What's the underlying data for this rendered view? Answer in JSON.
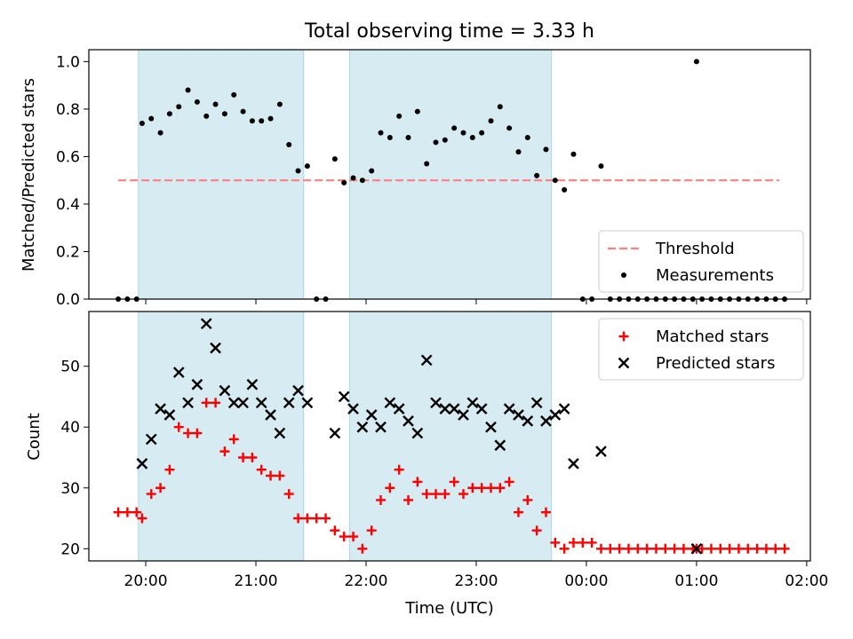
{
  "figure": {
    "title": "Total observing time = 3.33 h"
  },
  "chart_data": [
    {
      "type": "scatter",
      "panel": "top",
      "ylabel": "Matched/Predicted stars",
      "ylim": [
        0,
        1.05
      ],
      "yticks": [
        "0.0",
        "0.2",
        "0.4",
        "0.6",
        "0.8",
        "1.0"
      ],
      "xlim": [
        "19:29",
        "02:02"
      ],
      "x_is_time_of_day_utc": true,
      "observing_windows": [
        [
          "19:56",
          "21:26"
        ],
        [
          "21:51",
          "23:41"
        ]
      ],
      "window_color": "#add8e6",
      "threshold": {
        "name": "Threshold",
        "y": 0.5,
        "x_range": [
          "19:45",
          "01:45"
        ],
        "color": "#ff7f7f",
        "style": "dashed"
      },
      "series": [
        {
          "name": "Measurements",
          "marker": "dot",
          "color": "#000000",
          "points": [
            [
              "19:45",
              0.0
            ],
            [
              "19:50",
              0.0
            ],
            [
              "19:55",
              0.0
            ],
            [
              "19:58",
              0.74
            ],
            [
              "20:03",
              0.76
            ],
            [
              "20:08",
              0.7
            ],
            [
              "20:13",
              0.78
            ],
            [
              "20:18",
              0.81
            ],
            [
              "20:23",
              0.88
            ],
            [
              "20:28",
              0.83
            ],
            [
              "20:33",
              0.77
            ],
            [
              "20:38",
              0.82
            ],
            [
              "20:43",
              0.78
            ],
            [
              "20:48",
              0.86
            ],
            [
              "20:53",
              0.79
            ],
            [
              "20:58",
              0.75
            ],
            [
              "21:03",
              0.75
            ],
            [
              "21:08",
              0.76
            ],
            [
              "21:13",
              0.82
            ],
            [
              "21:18",
              0.65
            ],
            [
              "21:23",
              0.54
            ],
            [
              "21:28",
              0.56
            ],
            [
              "21:33",
              0.0
            ],
            [
              "21:38",
              0.0
            ],
            [
              "21:43",
              0.59
            ],
            [
              "21:48",
              0.49
            ],
            [
              "21:53",
              0.51
            ],
            [
              "21:58",
              0.5
            ],
            [
              "22:03",
              0.54
            ],
            [
              "22:08",
              0.7
            ],
            [
              "22:13",
              0.68
            ],
            [
              "22:18",
              0.77
            ],
            [
              "22:23",
              0.68
            ],
            [
              "22:28",
              0.79
            ],
            [
              "22:33",
              0.57
            ],
            [
              "22:38",
              0.66
            ],
            [
              "22:43",
              0.67
            ],
            [
              "22:48",
              0.72
            ],
            [
              "22:53",
              0.7
            ],
            [
              "22:58",
              0.68
            ],
            [
              "23:03",
              0.7
            ],
            [
              "23:08",
              0.75
            ],
            [
              "23:13",
              0.81
            ],
            [
              "23:18",
              0.72
            ],
            [
              "23:23",
              0.62
            ],
            [
              "23:28",
              0.68
            ],
            [
              "23:33",
              0.52
            ],
            [
              "23:38",
              0.63
            ],
            [
              "23:43",
              0.5
            ],
            [
              "23:48",
              0.46
            ],
            [
              "23:53",
              0.61
            ],
            [
              "23:58",
              0.0
            ],
            [
              "00:03",
              0.0
            ],
            [
              "00:08",
              0.56
            ],
            [
              "00:13",
              0.0
            ],
            [
              "00:18",
              0.0
            ],
            [
              "00:23",
              0.0
            ],
            [
              "00:28",
              0.0
            ],
            [
              "00:33",
              0.0
            ],
            [
              "00:38",
              0.0
            ],
            [
              "00:43",
              0.0
            ],
            [
              "00:48",
              0.0
            ],
            [
              "00:53",
              0.0
            ],
            [
              "00:58",
              0.0
            ],
            [
              "01:00",
              1.0
            ],
            [
              "01:03",
              0.0
            ],
            [
              "01:08",
              0.0
            ],
            [
              "01:13",
              0.0
            ],
            [
              "01:18",
              0.0
            ],
            [
              "01:23",
              0.0
            ],
            [
              "01:28",
              0.0
            ],
            [
              "01:33",
              0.0
            ],
            [
              "01:38",
              0.0
            ],
            [
              "01:43",
              0.0
            ],
            [
              "01:48",
              0.0
            ]
          ]
        }
      ],
      "legend": {
        "position": "lower right",
        "entries": [
          "Threshold",
          "Measurements"
        ]
      }
    },
    {
      "type": "scatter",
      "panel": "bottom",
      "xlabel": "Time (UTC)",
      "ylabel": "Count",
      "ylim": [
        18,
        59
      ],
      "yticks": [
        "20",
        "30",
        "40",
        "50"
      ],
      "xlim": [
        "19:29",
        "02:02"
      ],
      "xticks": [
        "20:00",
        "21:00",
        "22:00",
        "23:00",
        "00:00",
        "01:00",
        "02:00"
      ],
      "observing_windows": [
        [
          "19:56",
          "21:26"
        ],
        [
          "21:51",
          "23:41"
        ]
      ],
      "window_color": "#add8e6",
      "series": [
        {
          "name": "Matched stars",
          "marker": "plus",
          "color": "#ff0000",
          "points": [
            [
              "19:45",
              26
            ],
            [
              "19:50",
              26
            ],
            [
              "19:55",
              26
            ],
            [
              "19:58",
              25
            ],
            [
              "20:03",
              29
            ],
            [
              "20:08",
              30
            ],
            [
              "20:13",
              33
            ],
            [
              "20:18",
              40
            ],
            [
              "20:23",
              39
            ],
            [
              "20:28",
              39
            ],
            [
              "20:33",
              44
            ],
            [
              "20:38",
              44
            ],
            [
              "20:43",
              36
            ],
            [
              "20:48",
              38
            ],
            [
              "20:53",
              35
            ],
            [
              "20:58",
              35
            ],
            [
              "21:03",
              33
            ],
            [
              "21:08",
              32
            ],
            [
              "21:13",
              32
            ],
            [
              "21:18",
              29
            ],
            [
              "21:23",
              25
            ],
            [
              "21:28",
              25
            ],
            [
              "21:33",
              25
            ],
            [
              "21:38",
              25
            ],
            [
              "21:43",
              23
            ],
            [
              "21:48",
              22
            ],
            [
              "21:53",
              22
            ],
            [
              "21:58",
              20
            ],
            [
              "22:03",
              23
            ],
            [
              "22:08",
              28
            ],
            [
              "22:13",
              30
            ],
            [
              "22:18",
              33
            ],
            [
              "22:23",
              28
            ],
            [
              "22:28",
              31
            ],
            [
              "22:33",
              29
            ],
            [
              "22:38",
              29
            ],
            [
              "22:43",
              29
            ],
            [
              "22:48",
              31
            ],
            [
              "22:53",
              29
            ],
            [
              "22:58",
              30
            ],
            [
              "23:03",
              30
            ],
            [
              "23:08",
              30
            ],
            [
              "23:13",
              30
            ],
            [
              "23:18",
              31
            ],
            [
              "23:23",
              26
            ],
            [
              "23:28",
              28
            ],
            [
              "23:33",
              23
            ],
            [
              "23:38",
              26
            ],
            [
              "23:43",
              21
            ],
            [
              "23:48",
              20
            ],
            [
              "23:53",
              21
            ],
            [
              "23:58",
              21
            ],
            [
              "00:03",
              21
            ],
            [
              "00:08",
              20
            ],
            [
              "00:13",
              20
            ],
            [
              "00:18",
              20
            ],
            [
              "00:23",
              20
            ],
            [
              "00:28",
              20
            ],
            [
              "00:33",
              20
            ],
            [
              "00:38",
              20
            ],
            [
              "00:43",
              20
            ],
            [
              "00:48",
              20
            ],
            [
              "00:53",
              20
            ],
            [
              "00:58",
              20
            ],
            [
              "01:00",
              20
            ],
            [
              "01:03",
              20
            ],
            [
              "01:08",
              20
            ],
            [
              "01:13",
              20
            ],
            [
              "01:18",
              20
            ],
            [
              "01:23",
              20
            ],
            [
              "01:28",
              20
            ],
            [
              "01:33",
              20
            ],
            [
              "01:38",
              20
            ],
            [
              "01:43",
              20
            ],
            [
              "01:48",
              20
            ]
          ]
        },
        {
          "name": "Predicted stars",
          "marker": "x",
          "color": "#000000",
          "points": [
            [
              "19:58",
              34
            ],
            [
              "20:03",
              38
            ],
            [
              "20:08",
              43
            ],
            [
              "20:13",
              42
            ],
            [
              "20:18",
              49
            ],
            [
              "20:23",
              44
            ],
            [
              "20:28",
              47
            ],
            [
              "20:33",
              57
            ],
            [
              "20:38",
              53
            ],
            [
              "20:43",
              46
            ],
            [
              "20:48",
              44
            ],
            [
              "20:53",
              44
            ],
            [
              "20:58",
              47
            ],
            [
              "21:03",
              44
            ],
            [
              "21:08",
              42
            ],
            [
              "21:13",
              39
            ],
            [
              "21:18",
              44
            ],
            [
              "21:23",
              46
            ],
            [
              "21:28",
              44
            ],
            [
              "21:43",
              39
            ],
            [
              "21:48",
              45
            ],
            [
              "21:53",
              43
            ],
            [
              "21:58",
              40
            ],
            [
              "22:03",
              42
            ],
            [
              "22:08",
              40
            ],
            [
              "22:13",
              44
            ],
            [
              "22:18",
              43
            ],
            [
              "22:23",
              41
            ],
            [
              "22:28",
              39
            ],
            [
              "22:33",
              51
            ],
            [
              "22:38",
              44
            ],
            [
              "22:43",
              43
            ],
            [
              "22:48",
              43
            ],
            [
              "22:53",
              42
            ],
            [
              "22:58",
              44
            ],
            [
              "23:03",
              43
            ],
            [
              "23:08",
              40
            ],
            [
              "23:13",
              37
            ],
            [
              "23:18",
              43
            ],
            [
              "23:23",
              42
            ],
            [
              "23:28",
              41
            ],
            [
              "23:33",
              44
            ],
            [
              "23:38",
              41
            ],
            [
              "23:43",
              42
            ],
            [
              "23:48",
              43
            ],
            [
              "23:53",
              34
            ],
            [
              "00:08",
              36
            ],
            [
              "01:00",
              20
            ]
          ]
        }
      ],
      "legend": {
        "position": "upper right",
        "entries": [
          "Matched stars",
          "Predicted stars"
        ]
      }
    }
  ]
}
